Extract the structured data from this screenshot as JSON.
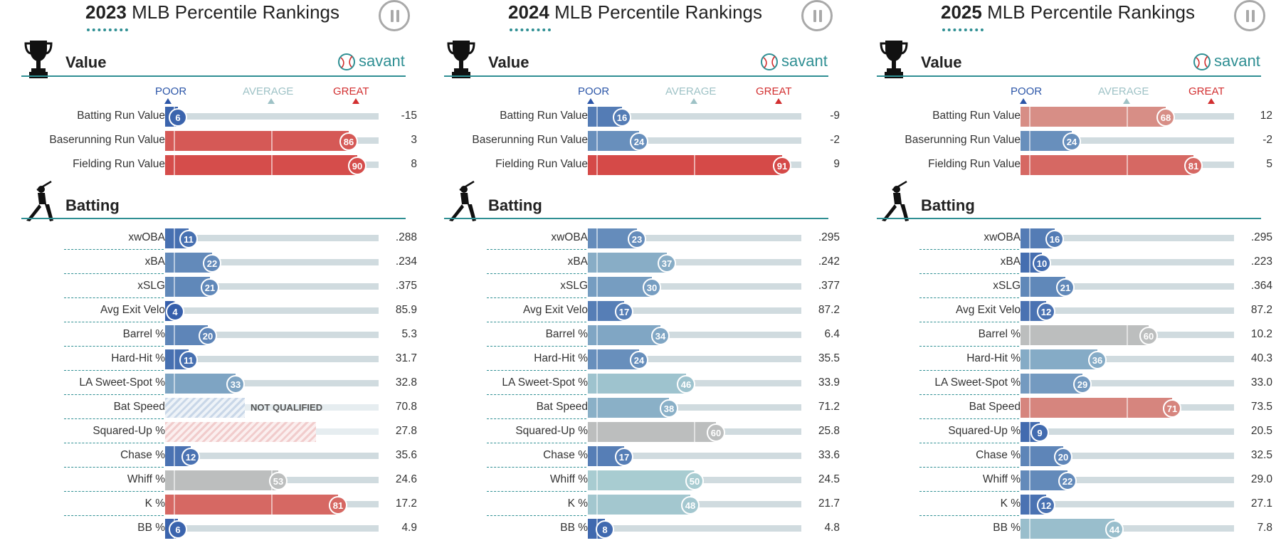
{
  "scale": {
    "poor": "POOR",
    "average": "AVERAGE",
    "great": "GREAT"
  },
  "section_icons": {
    "value": "trophy-icon",
    "batting": "batter-silhouette-icon",
    "brand": "baseball-icon"
  },
  "colors": {
    "teal": "#2f8f93",
    "poor": "#2c56a8",
    "average_label": "#9ec2c6",
    "great": "#d22f30"
  },
  "panels": [
    {
      "year": "2023",
      "title_rest": "MLB Percentile Rankings",
      "value_title": "Value",
      "batting_title": "Batting",
      "brand": "savant",
      "value_rows": [
        {
          "label": "Batting Run Value",
          "pct": 6,
          "value": "-15"
        },
        {
          "label": "Baserunning Run Value",
          "pct": 86,
          "value": "3"
        },
        {
          "label": "Fielding Run Value",
          "pct": 90,
          "value": "8"
        }
      ],
      "batting_rows": [
        {
          "label": "xwOBA",
          "pct": 11,
          "value": ".288"
        },
        {
          "label": "xBA",
          "pct": 22,
          "value": ".234"
        },
        {
          "label": "xSLG",
          "pct": 21,
          "value": ".375"
        },
        {
          "label": "Avg Exit Velo",
          "pct": 4,
          "value": "85.9"
        },
        {
          "label": "Barrel %",
          "pct": 20,
          "value": "5.3"
        },
        {
          "label": "Hard-Hit %",
          "pct": 11,
          "value": "31.7"
        },
        {
          "label": "LA Sweet-Spot %",
          "pct": 33,
          "value": "32.8"
        },
        {
          "label": "Bat Speed",
          "pct": null,
          "value": "70.8",
          "not_qualified": "NOT QUALIFIED",
          "nq_style": "blue"
        },
        {
          "label": "Squared-Up %",
          "pct": null,
          "value": "27.8",
          "nq_style": "red"
        },
        {
          "label": "Chase %",
          "pct": 12,
          "value": "35.6"
        },
        {
          "label": "Whiff %",
          "pct": 53,
          "value": "24.6"
        },
        {
          "label": "K %",
          "pct": 81,
          "value": "17.2"
        },
        {
          "label": "BB %",
          "pct": 6,
          "value": "4.9"
        }
      ]
    },
    {
      "year": "2024",
      "title_rest": "MLB Percentile Rankings",
      "value_title": "Value",
      "batting_title": "Batting",
      "brand": "savant",
      "value_rows": [
        {
          "label": "Batting Run Value",
          "pct": 16,
          "value": "-9"
        },
        {
          "label": "Baserunning Run Value",
          "pct": 24,
          "value": "-2"
        },
        {
          "label": "Fielding Run Value",
          "pct": 91,
          "value": "9"
        }
      ],
      "batting_rows": [
        {
          "label": "xwOBA",
          "pct": 23,
          "value": ".295"
        },
        {
          "label": "xBA",
          "pct": 37,
          "value": ".242"
        },
        {
          "label": "xSLG",
          "pct": 30,
          "value": ".377"
        },
        {
          "label": "Avg Exit Velo",
          "pct": 17,
          "value": "87.2"
        },
        {
          "label": "Barrel %",
          "pct": 34,
          "value": "6.4"
        },
        {
          "label": "Hard-Hit %",
          "pct": 24,
          "value": "35.5"
        },
        {
          "label": "LA Sweet-Spot %",
          "pct": 46,
          "value": "33.9"
        },
        {
          "label": "Bat Speed",
          "pct": 38,
          "value": "71.2"
        },
        {
          "label": "Squared-Up %",
          "pct": 60,
          "value": "25.8"
        },
        {
          "label": "Chase %",
          "pct": 17,
          "value": "33.6"
        },
        {
          "label": "Whiff %",
          "pct": 50,
          "value": "24.5"
        },
        {
          "label": "K %",
          "pct": 48,
          "value": "21.7"
        },
        {
          "label": "BB %",
          "pct": 8,
          "value": "4.8"
        }
      ]
    },
    {
      "year": "2025",
      "title_rest": "MLB Percentile Rankings",
      "value_title": "Value",
      "batting_title": "Batting",
      "brand": "savant",
      "value_rows": [
        {
          "label": "Batting Run Value",
          "pct": 68,
          "value": "12"
        },
        {
          "label": "Baserunning Run Value",
          "pct": 24,
          "value": "-2"
        },
        {
          "label": "Fielding Run Value",
          "pct": 81,
          "value": "5"
        }
      ],
      "batting_rows": [
        {
          "label": "xwOBA",
          "pct": 16,
          "value": ".295"
        },
        {
          "label": "xBA",
          "pct": 10,
          "value": ".223"
        },
        {
          "label": "xSLG",
          "pct": 21,
          "value": ".364"
        },
        {
          "label": "Avg Exit Velo",
          "pct": 12,
          "value": "87.2"
        },
        {
          "label": "Barrel %",
          "pct": 60,
          "value": "10.2"
        },
        {
          "label": "Hard-Hit %",
          "pct": 36,
          "value": "40.3"
        },
        {
          "label": "LA Sweet-Spot %",
          "pct": 29,
          "value": "33.0"
        },
        {
          "label": "Bat Speed",
          "pct": 71,
          "value": "73.5"
        },
        {
          "label": "Squared-Up %",
          "pct": 9,
          "value": "20.5"
        },
        {
          "label": "Chase %",
          "pct": 20,
          "value": "32.5"
        },
        {
          "label": "Whiff %",
          "pct": 22,
          "value": "29.0"
        },
        {
          "label": "K %",
          "pct": 12,
          "value": "27.1"
        },
        {
          "label": "BB %",
          "pct": 44,
          "value": "7.8"
        }
      ]
    }
  ]
}
